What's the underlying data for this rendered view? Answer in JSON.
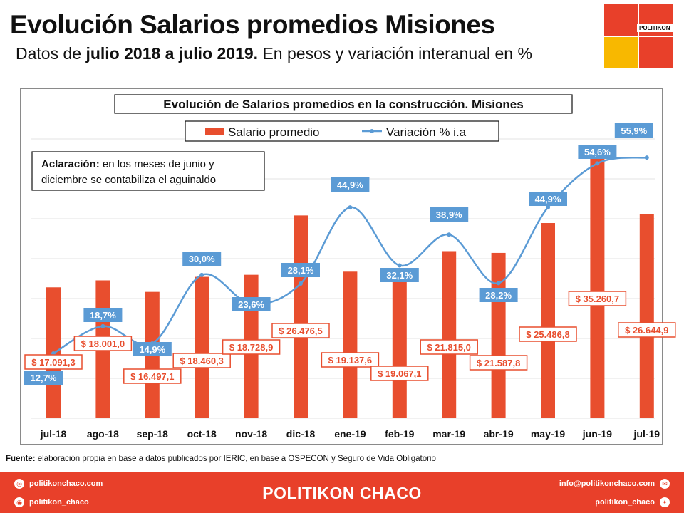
{
  "header": {
    "title": "Evolución Salarios promedios Misiones",
    "subtitle_prefix": "Datos de ",
    "subtitle_bold": "julio 2018 a julio 2019.",
    "subtitle_suffix": " En pesos y variación interanual en %"
  },
  "logo": {
    "text": "POLITIKON"
  },
  "chart_data": {
    "type": "bar",
    "title": "Evolución de Salarios promedios en la construcción. Misiones",
    "categories": [
      "jul-18",
      "ago-18",
      "sep-18",
      "oct-18",
      "nov-18",
      "dic-18",
      "ene-19",
      "feb-19",
      "mar-19",
      "abr-19",
      "may-19",
      "jun-19",
      "jul-19"
    ],
    "series": [
      {
        "name": "Salario promedio",
        "type": "bar",
        "color": "#e84e2e",
        "values": [
          17091.3,
          18001.0,
          16497.1,
          18460.3,
          18728.9,
          26476.5,
          19137.6,
          19067.1,
          21815.0,
          21587.8,
          25486.8,
          35260.7,
          26644.9
        ],
        "labels": [
          "$ 17.091,3",
          "$ 18.001,0",
          "$ 16.497,1",
          "$ 18.460,3",
          "$ 18.728,9",
          "$ 26.476,5",
          "$ 19.137,6",
          "$ 19.067,1",
          "$ 21.815,0",
          "$ 21.587,8",
          "$ 25.486,8",
          "$ 35.260,7",
          "$ 26.644,9"
        ]
      },
      {
        "name": "Variación % i.a",
        "type": "line",
        "color": "#5b9bd5",
        "values": [
          12.7,
          18.7,
          14.9,
          30.0,
          23.6,
          28.1,
          44.9,
          32.1,
          38.9,
          28.2,
          44.9,
          54.6,
          55.9
        ],
        "labels": [
          "12,7%",
          "18,7%",
          "14,9%",
          "30,0%",
          "23,6%",
          "28,1%",
          "44,9%",
          "32,1%",
          "38,9%",
          "28,2%",
          "44,9%",
          "54,6%",
          "55,9%"
        ]
      }
    ],
    "legend_position": "top-center",
    "grid": true,
    "annotation": {
      "bold": "Aclaración:",
      "line1": " en los meses de junio y",
      "line2": "diciembre se contabiliza el aguinaldo"
    }
  },
  "source": {
    "bold": "Fuente:",
    "text": " elaboración propia en base a datos publicados por IERIC, en base a OSPECON y Seguro de Vida Obligatorio"
  },
  "footer": {
    "brand": "POLITIKON CHACO",
    "website": "politikonchaco.com",
    "instagram": "politikon_chaco",
    "email": "info@politikonchaco.com",
    "twitter": "politikon_chaco"
  }
}
